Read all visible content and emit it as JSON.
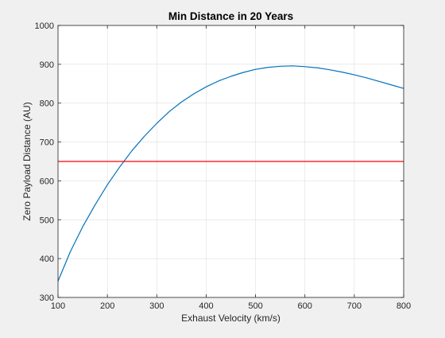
{
  "figure": {
    "background": "#f0f0f0"
  },
  "chart_data": {
    "type": "line",
    "title": "Min Distance in 20 Years",
    "xlabel": "Exhaust Velocity (km/s)",
    "ylabel": "Zero Payload Distance (AU)",
    "xlim": [
      100,
      800
    ],
    "ylim": [
      300,
      1000
    ],
    "x_ticks": [
      100,
      200,
      300,
      400,
      500,
      600,
      700,
      800
    ],
    "y_ticks": [
      300,
      400,
      500,
      600,
      700,
      800,
      900,
      1000
    ],
    "x_tick_labels": [
      "100",
      "200",
      "300",
      "400",
      "500",
      "600",
      "700",
      "800"
    ],
    "y_tick_labels": [
      "300",
      "400",
      "500",
      "600",
      "700",
      "800",
      "900",
      "1000"
    ],
    "grid": true,
    "legend": "none",
    "series": [
      {
        "color": "#0072bd",
        "x": [
          100,
          125,
          150,
          175,
          200,
          225,
          250,
          275,
          300,
          325,
          350,
          375,
          400,
          425,
          450,
          475,
          500,
          525,
          550,
          575,
          600,
          625,
          650,
          675,
          700,
          725,
          750,
          775,
          800
        ],
        "y": [
          342,
          418,
          482,
          538,
          590,
          636,
          678,
          715,
          748,
          778,
          803,
          824,
          842,
          857,
          869,
          879,
          887,
          892,
          895,
          896,
          894,
          891,
          886,
          880,
          873,
          865,
          856,
          847,
          838
        ]
      },
      {
        "color": "#ff0000",
        "x": [
          100,
          800
        ],
        "y": [
          650,
          650
        ]
      }
    ]
  }
}
